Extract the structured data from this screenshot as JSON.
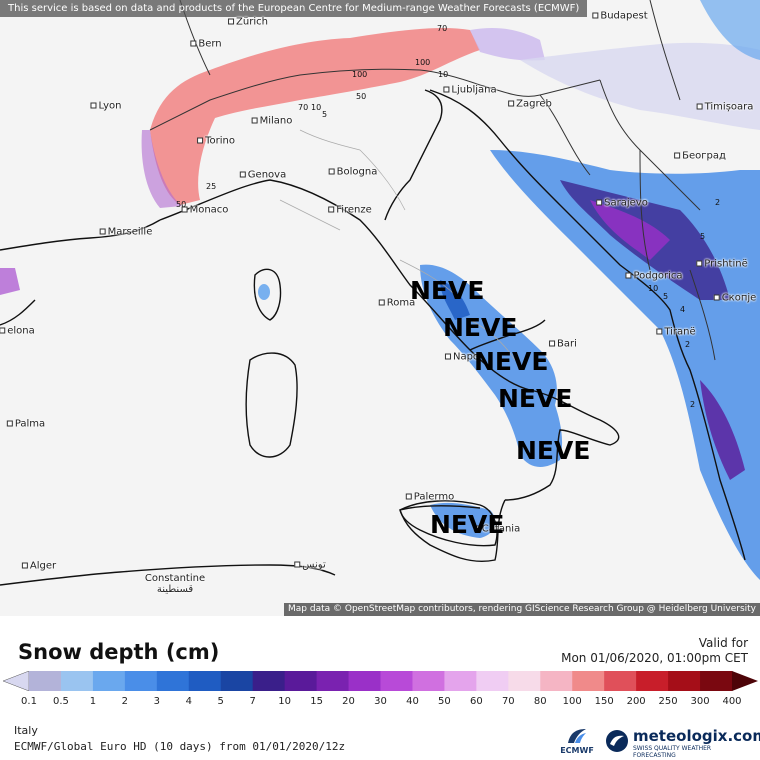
{
  "banner": "This service is based on data and products of the European Centre for Medium-range Weather Forecasts (ECMWF)",
  "attribution": "Map data © OpenStreetMap contributors, rendering GIScience Research Group @ Heidelberg University",
  "cities": [
    {
      "id": "zurich",
      "name": "Zürich"
    },
    {
      "id": "budapest",
      "name": "Budapest"
    },
    {
      "id": "bern",
      "name": "Bern"
    },
    {
      "id": "lyon",
      "name": "Lyon"
    },
    {
      "id": "ljubljana",
      "name": "Ljubljana"
    },
    {
      "id": "zagreb",
      "name": "Zagreb"
    },
    {
      "id": "timisoara",
      "name": "Timișoara"
    },
    {
      "id": "milano",
      "name": "Milano"
    },
    {
      "id": "torino",
      "name": "Torino"
    },
    {
      "id": "beograd",
      "name": "Београд"
    },
    {
      "id": "genova",
      "name": "Genova"
    },
    {
      "id": "bologna",
      "name": "Bologna"
    },
    {
      "id": "monaco",
      "name": "Monaco"
    },
    {
      "id": "sarajevo",
      "name": "Sarajevo"
    },
    {
      "id": "firenze",
      "name": "Firenze"
    },
    {
      "id": "marseille",
      "name": "Marseille"
    },
    {
      "id": "podgorica",
      "name": "Podgorica"
    },
    {
      "id": "pristine",
      "name": "Prishtinë"
    },
    {
      "id": "roma",
      "name": "Roma"
    },
    {
      "id": "skopje",
      "name": "Скопје"
    },
    {
      "id": "barcelona",
      "name": "elona"
    },
    {
      "id": "tirane",
      "name": "Tiranë"
    },
    {
      "id": "napoli",
      "name": "Napo"
    },
    {
      "id": "bari",
      "name": "Bari"
    },
    {
      "id": "palma",
      "name": "Palma"
    },
    {
      "id": "palermo",
      "name": "Palermo"
    },
    {
      "id": "catania",
      "name": "Catania"
    },
    {
      "id": "alger",
      "name": "Alger"
    },
    {
      "id": "constantine",
      "name": "Constantine\nقسنطينة"
    },
    {
      "id": "tunis",
      "name": "تونس"
    }
  ],
  "annotations": [
    "NEVE",
    "NEVE",
    "NEVE",
    "NEVE",
    "NEVE",
    "NEVE"
  ],
  "contour_labels": [
    "70",
    "100",
    "10",
    "100",
    "50",
    "70",
    "10",
    "5",
    "50",
    "25",
    "2",
    "5",
    "4",
    "2",
    "2",
    "10",
    "5"
  ],
  "legend": {
    "title": "Snow depth (cm)",
    "valid_label": "Valid for",
    "valid_date": "Mon 01/06/2020, 01:00pm CET",
    "ticks": [
      "0.1",
      "0.5",
      "1",
      "2",
      "3",
      "4",
      "5",
      "7",
      "10",
      "15",
      "20",
      "30",
      "40",
      "50",
      "60",
      "70",
      "80",
      "100",
      "150",
      "200",
      "250",
      "300",
      "400"
    ],
    "colors": [
      "#d8d8f0",
      "#b3b3d9",
      "#9ac4f0",
      "#6aa8ee",
      "#4a8ee8",
      "#2f74d8",
      "#1f5cc2",
      "#1a45a3",
      "#3a1f8a",
      "#5a1a9a",
      "#7a22b0",
      "#9a30c8",
      "#b84ad8",
      "#d070e0",
      "#e4a4ec",
      "#f0cdf3",
      "#f7dbe9",
      "#f5b5c4",
      "#f08a8a",
      "#e0505a",
      "#c81e2a",
      "#a50e18",
      "#7a0810",
      "#4d0408"
    ]
  },
  "footer": {
    "region": "Italy",
    "model": "ECMWF/Global Euro HD (10 days) from 01/01/2020/12z",
    "ecmwf_label": "ECMWF",
    "brand": "meteologix.com",
    "brand_tag": "SWISS QUALITY WEATHER FORECASTING"
  }
}
